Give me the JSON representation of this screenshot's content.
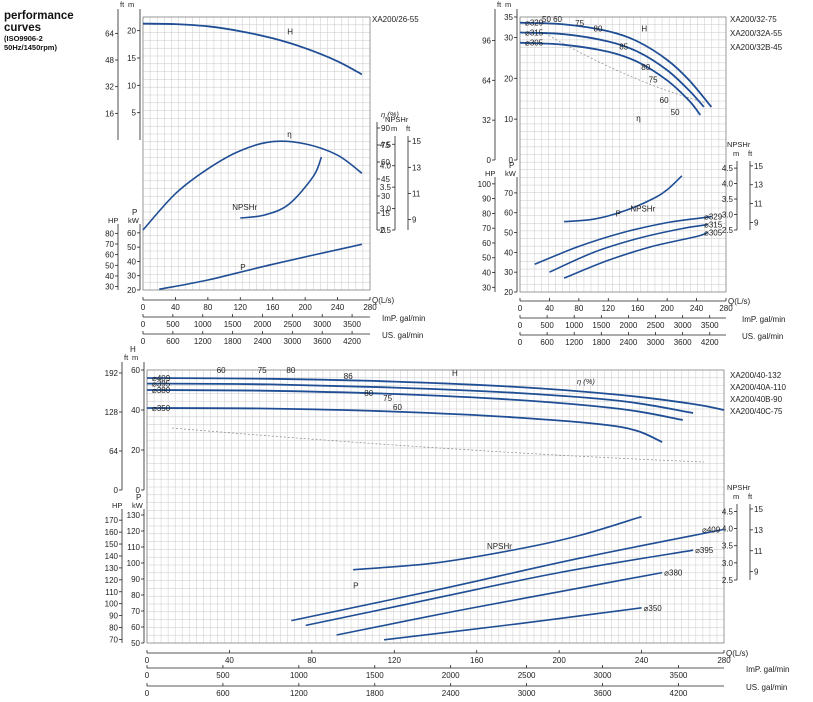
{
  "heading": {
    "line1": "performance",
    "line2": "curves",
    "standard": "(ISO9906-2",
    "speed": "50Hz/1450rpm)"
  },
  "colors": {
    "curve": "#1f4e95",
    "grid": "#c9c9c9",
    "eff": "#888888"
  },
  "chart_data": [
    {
      "id": "XA200/26-55",
      "type": "line",
      "models": [
        "XA200/26-55"
      ],
      "x_unit": "Q(L/s)",
      "x_ticks": [
        0,
        40,
        80,
        120,
        160,
        200,
        240,
        280
      ],
      "xlim": [
        0,
        280
      ],
      "imp_ticks": [
        "0",
        "500",
        "1000",
        "1500",
        "2000",
        "2500",
        "3000",
        "3500"
      ],
      "imp_label": "ImP. gal/min",
      "us_ticks": [
        "0",
        "600",
        "1200",
        "1800",
        "2400",
        "3000",
        "3600",
        "4200"
      ],
      "us_label": "US. gal/min",
      "head": {
        "unit_ft": "ft",
        "unit_m": "m",
        "label": "H",
        "m_ticks": [
          "5",
          "10",
          "15",
          "20"
        ],
        "ft_ticks": [
          "16",
          "32",
          "48",
          "64"
        ],
        "ylim_m": [
          0,
          22.5
        ],
        "series": [
          {
            "label": "H",
            "x": [
              0,
              40,
              80,
              120,
              160,
              200,
              240,
              270
            ],
            "y": [
              21.3,
              21.2,
              20.8,
              19.9,
              18.6,
              16.8,
              14.4,
              12.0
            ]
          }
        ]
      },
      "efficiency": {
        "unit": "η (%)",
        "label": "η",
        "ticks": [
          "0",
          "15",
          "30",
          "45",
          "60",
          "75",
          "90"
        ],
        "ylim": [
          0,
          90
        ],
        "x": [
          0,
          40,
          80,
          120,
          160,
          200,
          240,
          270
        ],
        "y": [
          0,
          32,
          54,
          70,
          78,
          76,
          66,
          50
        ]
      },
      "npsh": {
        "unit_m": "m",
        "unit_ft": "ft",
        "header": "NPSHr",
        "label": "NPSHr",
        "m_ticks": [
          "2.5",
          "3.0",
          "3.5",
          "4.0",
          "4.5"
        ],
        "ft_ticks": [
          "9",
          "11",
          "13",
          "15"
        ],
        "ylim": [
          2.5,
          4.6
        ],
        "x": [
          120,
          150,
          180,
          210,
          220
        ],
        "y": [
          2.78,
          2.85,
          3.1,
          3.75,
          4.2
        ]
      },
      "power": {
        "unit_hp": "HP",
        "unit_kw": "kW",
        "label": "P",
        "hp_ticks": [
          "30",
          "40",
          "50",
          "60",
          "70",
          "80"
        ],
        "kw_ticks": [
          "20",
          "30",
          "40",
          "50",
          "60"
        ],
        "ylim_kw": [
          20,
          62
        ],
        "series": [
          {
            "label": "P",
            "x": [
              20,
              80,
              160,
              270
            ],
            "y": [
              20.5,
              27,
              38,
              52
            ]
          }
        ]
      }
    },
    {
      "id": "XA200/32",
      "type": "line",
      "models": [
        "XA200/32-75",
        "XA200/32A-55",
        "XA200/32B-45"
      ],
      "x_unit": "Q(L/s)",
      "x_ticks": [
        0,
        40,
        80,
        120,
        160,
        200,
        240,
        280
      ],
      "xlim": [
        0,
        280
      ],
      "imp_ticks": [
        "0",
        "500",
        "1000",
        "1500",
        "2000",
        "2500",
        "3000",
        "3500"
      ],
      "imp_label": "ImP. gal/min",
      "us_ticks": [
        "0",
        "600",
        "1200",
        "1800",
        "2400",
        "3000",
        "3600",
        "4200"
      ],
      "us_label": "US. gal/min",
      "head": {
        "unit_ft": "ft",
        "unit_m": "m",
        "label": "H",
        "m_ticks": [
          "0",
          "10",
          "20",
          "30",
          "35"
        ],
        "ft_ticks": [
          "0",
          "32",
          "64",
          "96"
        ],
        "ylim_m": [
          0,
          35
        ],
        "series": [
          {
            "label": "⌀329",
            "x": [
              0,
              60,
              120,
              160,
              200,
              230,
              260
            ],
            "y": [
              33.6,
              33.2,
              31.5,
              29,
              24.5,
              19.5,
              13
            ]
          },
          {
            "label": "⌀315",
            "x": [
              0,
              60,
              120,
              160,
              200,
              230,
              250
            ],
            "y": [
              31.2,
              30.8,
              29,
              26.5,
              22,
              17,
              13
            ]
          },
          {
            "label": "⌀305",
            "x": [
              0,
              60,
              120,
              160,
              200,
              230,
              245
            ],
            "y": [
              28.7,
              28.2,
              26.5,
              24,
              19.5,
              14.5,
              11
            ]
          }
        ]
      },
      "efficiency_labels": [
        "50",
        "60",
        "75",
        "80",
        "85",
        "80",
        "75",
        "60",
        "50"
      ],
      "efficiency_label": "η",
      "npsh": {
        "unit_m": "m",
        "unit_ft": "ft",
        "header": "NPSHr",
        "label": "NPSHr",
        "m_ticks": [
          "2.5",
          "3.0",
          "3.5",
          "4.0",
          "4.5"
        ],
        "ft_ticks": [
          "9",
          "11",
          "13",
          "15"
        ],
        "ylim": [
          2.5,
          4.6
        ],
        "x": [
          60,
          100,
          140,
          180,
          200,
          220
        ],
        "y": [
          2.77,
          2.85,
          3.1,
          3.5,
          3.8,
          4.25
        ]
      },
      "power": {
        "unit_hp": "HP",
        "unit_kw": "kW",
        "label": "P",
        "hp_ticks": [
          "30",
          "40",
          "50",
          "60",
          "70",
          "80",
          "90",
          "100"
        ],
        "kw_ticks": [
          "20",
          "30",
          "40",
          "50",
          "60",
          "70"
        ],
        "ylim_kw": [
          20,
          75
        ],
        "series": [
          {
            "label": "⌀329",
            "x": [
              20,
              80,
              140,
              200,
              260
            ],
            "y": [
              34,
              43,
              50,
              55,
              58
            ]
          },
          {
            "label": "⌀315",
            "x": [
              40,
              100,
              160,
              220,
              255
            ],
            "y": [
              30,
              40,
              47,
              52,
              54
            ]
          },
          {
            "label": "⌀305",
            "x": [
              60,
              120,
              180,
              240,
              255
            ],
            "y": [
              27,
              36,
              43,
              48,
              50
            ]
          }
        ]
      }
    },
    {
      "id": "XA200/40",
      "type": "line",
      "models": [
        "XA200/40-132",
        "XA200/40A-110",
        "XA200/40B-90",
        "XA200/40C-75"
      ],
      "x_unit": "Q(L/s)",
      "x_ticks": [
        0,
        40,
        80,
        120,
        160,
        200,
        240,
        280
      ],
      "xlim": [
        0,
        280
      ],
      "imp_ticks": [
        "0",
        "500",
        "1000",
        "1500",
        "2000",
        "2500",
        "3000",
        "3500"
      ],
      "imp_label": "ImP. gal/min",
      "us_ticks": [
        "0",
        "600",
        "1200",
        "1800",
        "2400",
        "3000",
        "3600",
        "4200"
      ],
      "us_label": "US. gal/min",
      "head": {
        "unit_ft": "ft",
        "unit_m": "m",
        "label": "H",
        "m_ticks": [
          "0",
          "20",
          "40",
          "60"
        ],
        "ft_ticks": [
          "0",
          "64",
          "128",
          "192"
        ],
        "ylim_m": [
          0,
          60
        ],
        "series": [
          {
            "label": "⌀409",
            "x": [
              0,
              60,
              120,
              180,
              230,
              265,
              280
            ],
            "y": [
              56,
              55.6,
              54.2,
              51.5,
              47.5,
              43,
              40
            ]
          },
          {
            "label": "⌀395",
            "x": [
              0,
              60,
              120,
              180,
              230,
              265
            ],
            "y": [
              53.2,
              52.8,
              51.2,
              48.5,
              44.5,
              38.5
            ]
          },
          {
            "label": "⌀380",
            "x": [
              0,
              60,
              120,
              180,
              230,
              260
            ],
            "y": [
              50,
              49.6,
              48,
              45,
              40.5,
              35
            ]
          },
          {
            "label": "⌀350",
            "x": [
              0,
              60,
              120,
              180,
              230,
              250
            ],
            "y": [
              41,
              40.7,
              39.2,
              36.2,
              31.5,
              24
            ]
          }
        ]
      },
      "efficiency_labels": [
        "60",
        "75",
        "80",
        "86",
        "80",
        "75",
        "60"
      ],
      "efficiency_unit": "η (%)",
      "npsh": {
        "unit_m": "m",
        "unit_ft": "ft",
        "header": "NPSHr",
        "label": "NPSHr",
        "m_ticks": [
          "2.5",
          "3.0",
          "3.5",
          "4.0",
          "4.5"
        ],
        "ft_ticks": [
          "9",
          "11",
          "13",
          "15"
        ],
        "ylim": [
          2.5,
          4.6
        ],
        "x": [
          100,
          140,
          180,
          210,
          240
        ],
        "y": [
          2.8,
          3.0,
          3.4,
          3.8,
          4.35
        ]
      },
      "power": {
        "unit_hp": "HP",
        "unit_kw": "kW",
        "label": "P",
        "hp_ticks": [
          "70",
          "80",
          "90",
          "100",
          "110",
          "120",
          "130",
          "140",
          "150",
          "160",
          "170"
        ],
        "kw_ticks": [
          "50",
          "60",
          "70",
          "80",
          "90",
          "100",
          "110",
          "120",
          "130"
        ],
        "ylim_kw": [
          50,
          130
        ],
        "series": [
          {
            "label": "⌀409",
            "x": [
              70,
              140,
              210,
              280
            ],
            "y": [
              64,
              83,
              103,
              121
            ]
          },
          {
            "label": "⌀395",
            "x": [
              77,
              140,
              200,
              265
            ],
            "y": [
              61,
              78,
              94,
              108
            ]
          },
          {
            "label": "⌀380",
            "x": [
              92,
              150,
              200,
              250
            ],
            "y": [
              55,
              70,
              82,
              94
            ]
          },
          {
            "label": "⌀350",
            "x": [
              115,
              180,
              240
            ],
            "y": [
              52,
              62,
              72
            ]
          }
        ]
      }
    }
  ]
}
